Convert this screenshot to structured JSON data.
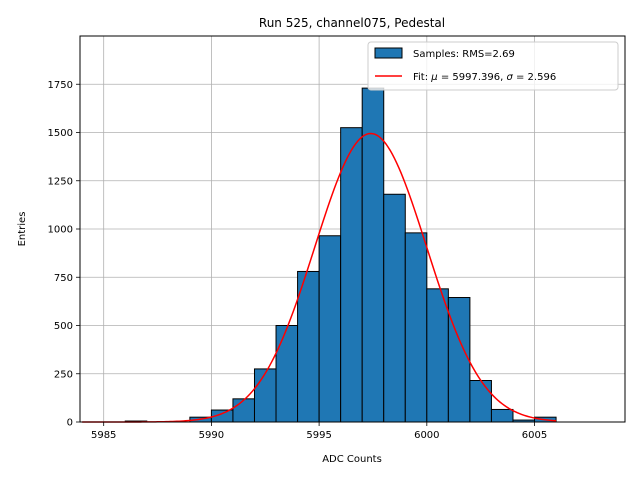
{
  "chart_data": {
    "type": "bar",
    "title": "Run 525, channel075, Pedestal",
    "xlabel": "ADC Counts",
    "ylabel": "Entries",
    "xlim": [
      5983.9,
      6009.2
    ],
    "ylim": [
      0,
      2000
    ],
    "xticks": [
      5985,
      5990,
      5995,
      6000,
      6005
    ],
    "yticks": [
      0,
      250,
      500,
      750,
      1000,
      1250,
      1500,
      1750
    ],
    "grid": true,
    "legend_position": "top-right",
    "bar_color": "#1f77b4",
    "fit_color": "#ff0000",
    "histogram": {
      "name": "Samples: RMS=2.69",
      "bins": [
        {
          "x0": 5984,
          "x1": 5985,
          "value": 0
        },
        {
          "x0": 5985,
          "x1": 5986,
          "value": 0
        },
        {
          "x0": 5986,
          "x1": 5987,
          "value": 5
        },
        {
          "x0": 5987,
          "x1": 5988,
          "value": 0
        },
        {
          "x0": 5988,
          "x1": 5989,
          "value": 0
        },
        {
          "x0": 5989,
          "x1": 5990,
          "value": 25
        },
        {
          "x0": 5990,
          "x1": 5991,
          "value": 62
        },
        {
          "x0": 5991,
          "x1": 5992,
          "value": 120
        },
        {
          "x0": 5992,
          "x1": 5993,
          "value": 275
        },
        {
          "x0": 5993,
          "x1": 5994,
          "value": 500
        },
        {
          "x0": 5994,
          "x1": 5995,
          "value": 780
        },
        {
          "x0": 5995,
          "x1": 5996,
          "value": 965
        },
        {
          "x0": 5996,
          "x1": 5997,
          "value": 1525
        },
        {
          "x0": 5997,
          "x1": 5998,
          "value": 1730
        },
        {
          "x0": 5998,
          "x1": 5999,
          "value": 1180
        },
        {
          "x0": 5999,
          "x1": 6000,
          "value": 980
        },
        {
          "x0": 6000,
          "x1": 6001,
          "value": 690
        },
        {
          "x0": 6001,
          "x1": 6002,
          "value": 645
        },
        {
          "x0": 6002,
          "x1": 6003,
          "value": 215
        },
        {
          "x0": 6003,
          "x1": 6004,
          "value": 65
        },
        {
          "x0": 6004,
          "x1": 6005,
          "value": 10
        },
        {
          "x0": 6005,
          "x1": 6006,
          "value": 25
        }
      ]
    },
    "fit": {
      "name": "Fit: μ = 5997.396, σ = 2.596",
      "legend_parts": {
        "prefix": "Fit: ",
        "mu_symbol": "μ",
        "mu_text": " = 5997.396, ",
        "sigma_symbol": "σ",
        "sigma_text": " = 2.596"
      },
      "mu": 5997.396,
      "sigma": 2.596,
      "amplitude": 1495,
      "x_range": [
        5984,
        6006
      ]
    }
  }
}
